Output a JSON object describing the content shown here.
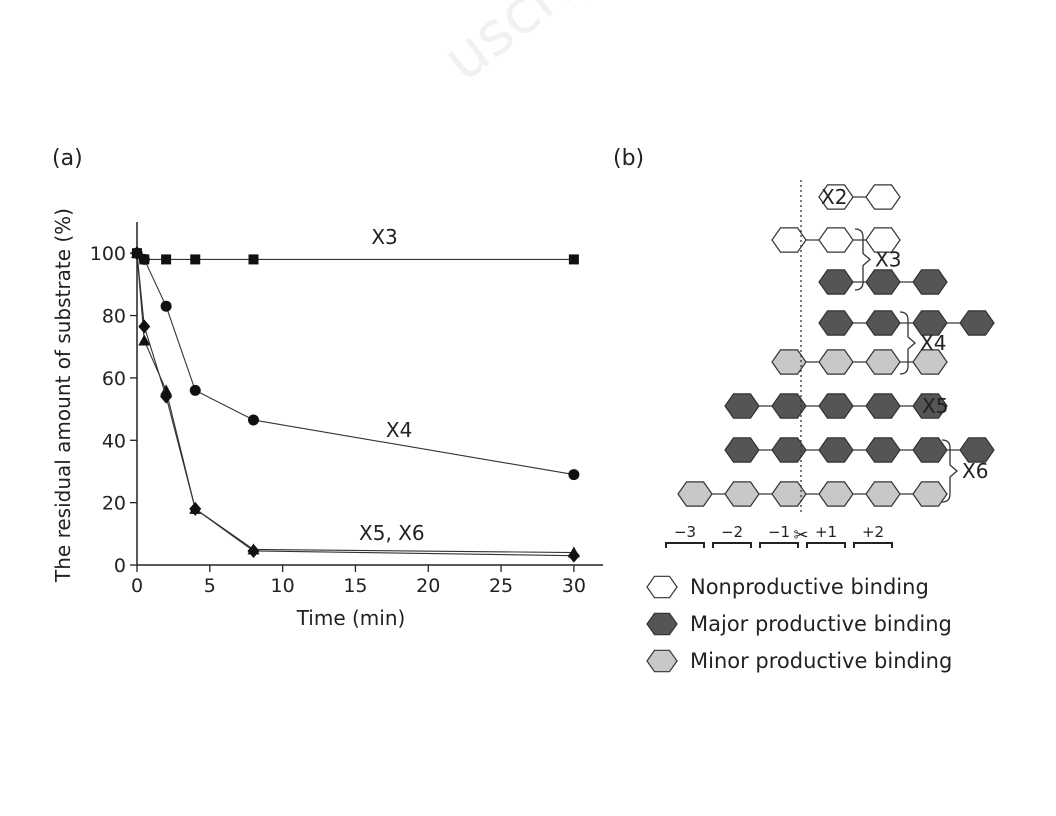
{
  "watermark": "uscrip",
  "chart_data": [
    {
      "type": "line",
      "panel_label": "(a)",
      "xlabel": "Time (min)",
      "ylabel": "The residual amount of substrate (%)",
      "xlim": [
        0,
        32
      ],
      "ylim": [
        0,
        110
      ],
      "xticks": [
        0,
        5,
        10,
        15,
        20,
        25,
        30
      ],
      "yticks": [
        0,
        20,
        40,
        60,
        80,
        100
      ],
      "grid": false,
      "series": [
        {
          "marker": "square",
          "x": [
            0,
            0.5,
            2,
            4,
            8,
            30
          ],
          "y": [
            100,
            98,
            98,
            98,
            98,
            98
          ]
        },
        {
          "marker": "circle",
          "x": [
            0,
            0.5,
            2,
            4,
            8,
            30
          ],
          "y": [
            100,
            98,
            83,
            56,
            46.5,
            29
          ]
        },
        {
          "marker": "triangle",
          "x": [
            0,
            0.5,
            2,
            4,
            8,
            30
          ],
          "y": [
            100,
            72,
            56,
            18,
            5,
            4
          ]
        },
        {
          "marker": "diamond",
          "x": [
            0,
            0.5,
            2,
            4,
            8,
            30
          ],
          "y": [
            100,
            76.5,
            54,
            18,
            4.5,
            3
          ]
        }
      ],
      "annotations": [
        {
          "text": "X3",
          "x": 17,
          "y": 103
        },
        {
          "text": "X4",
          "x": 18,
          "y": 41
        },
        {
          "text": "X5, X6",
          "x": 17.5,
          "y": 8
        }
      ]
    }
  ],
  "diagram": {
    "panel_label": "(b)",
    "rows": [
      {
        "label": "X2",
        "hexes": [
          "non",
          "non"
        ]
      },
      {
        "label": "X3",
        "hexes": [
          "non",
          "non",
          "non"
        ]
      },
      {
        "label": "",
        "hexes": [
          "major",
          "major",
          "major"
        ]
      },
      {
        "label": "X4",
        "hexes": [
          "major",
          "major",
          "major",
          "major"
        ]
      },
      {
        "label": "",
        "hexes": [
          "minor",
          "minor",
          "minor",
          "minor"
        ]
      },
      {
        "label": "X5",
        "hexes": [
          "major",
          "major",
          "major",
          "major",
          "major"
        ]
      },
      {
        "label": "X6",
        "hexes": [
          "major",
          "major",
          "major",
          "major",
          "major",
          "major"
        ]
      },
      {
        "label": "",
        "hexes": [
          "minor",
          "minor",
          "minor",
          "minor",
          "minor",
          "minor"
        ]
      }
    ],
    "subsites": [
      "−3",
      "−2",
      "−1",
      "+1",
      "+2"
    ],
    "legend": [
      {
        "type": "non",
        "label": "Nonproductive binding"
      },
      {
        "type": "major",
        "label": "Major productive binding"
      },
      {
        "type": "minor",
        "label": "Minor productive binding"
      }
    ],
    "colors": {
      "non": "#ffffff",
      "major": "#555555",
      "minor": "#c8c8c8",
      "stroke": "#333333"
    }
  }
}
